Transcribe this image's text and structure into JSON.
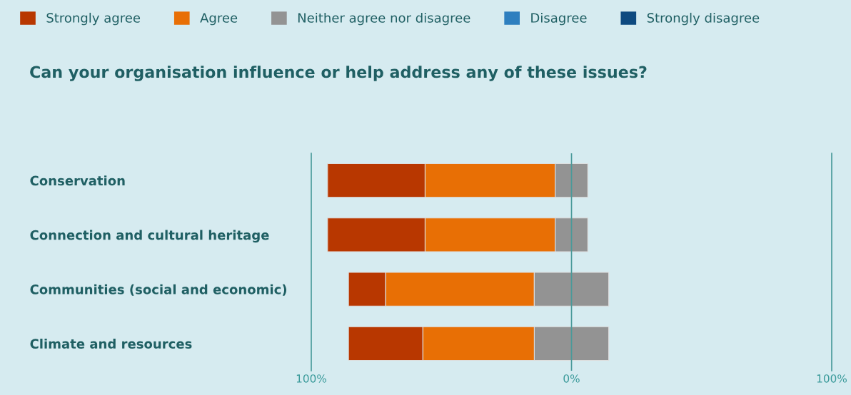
{
  "chart_data": {
    "type": "bar",
    "orientation": "horizontal",
    "title": "Can your organisation influence or help address any of these issues?",
    "categories": [
      "Conservation",
      "Connection and cultural heritage",
      "Communities (social and economic)",
      "Climate and resources"
    ],
    "series": [
      {
        "name": "Strongly agree",
        "color": "#b83700",
        "base": [
          -93.75,
          -93.75,
          -85.7,
          -85.7
        ],
        "values": [
          37.5,
          37.5,
          14.3,
          28.6
        ]
      },
      {
        "name": "Agree",
        "color": "#e86f05",
        "base": [
          -56.25,
          -56.25,
          -71.4,
          -57.1
        ],
        "values": [
          50,
          50,
          57.1,
          42.9
        ]
      },
      {
        "name": "Neither agree nor disagree",
        "color": "#939393",
        "base": [
          -6.25,
          -6.25,
          -14.3,
          -14.3
        ],
        "values": [
          12.5,
          12.5,
          28.6,
          28.6
        ]
      },
      {
        "name": "Disagree",
        "color": "#2e7fbf",
        "values": [
          null,
          null,
          null,
          null
        ]
      },
      {
        "name": "Strongly disagree",
        "color": "#0e4a80",
        "values": [
          null,
          null,
          null,
          null
        ]
      }
    ],
    "xlim": [
      -100,
      100
    ],
    "xticks": [
      {
        "value": -100,
        "label": "100%"
      },
      {
        "value": 0,
        "label": "0%"
      },
      {
        "value": 100,
        "label": "100%"
      }
    ],
    "ref_lines": [
      {
        "axis": "x",
        "value": 0,
        "color": "#4a9a9a"
      }
    ],
    "legend": "top"
  }
}
